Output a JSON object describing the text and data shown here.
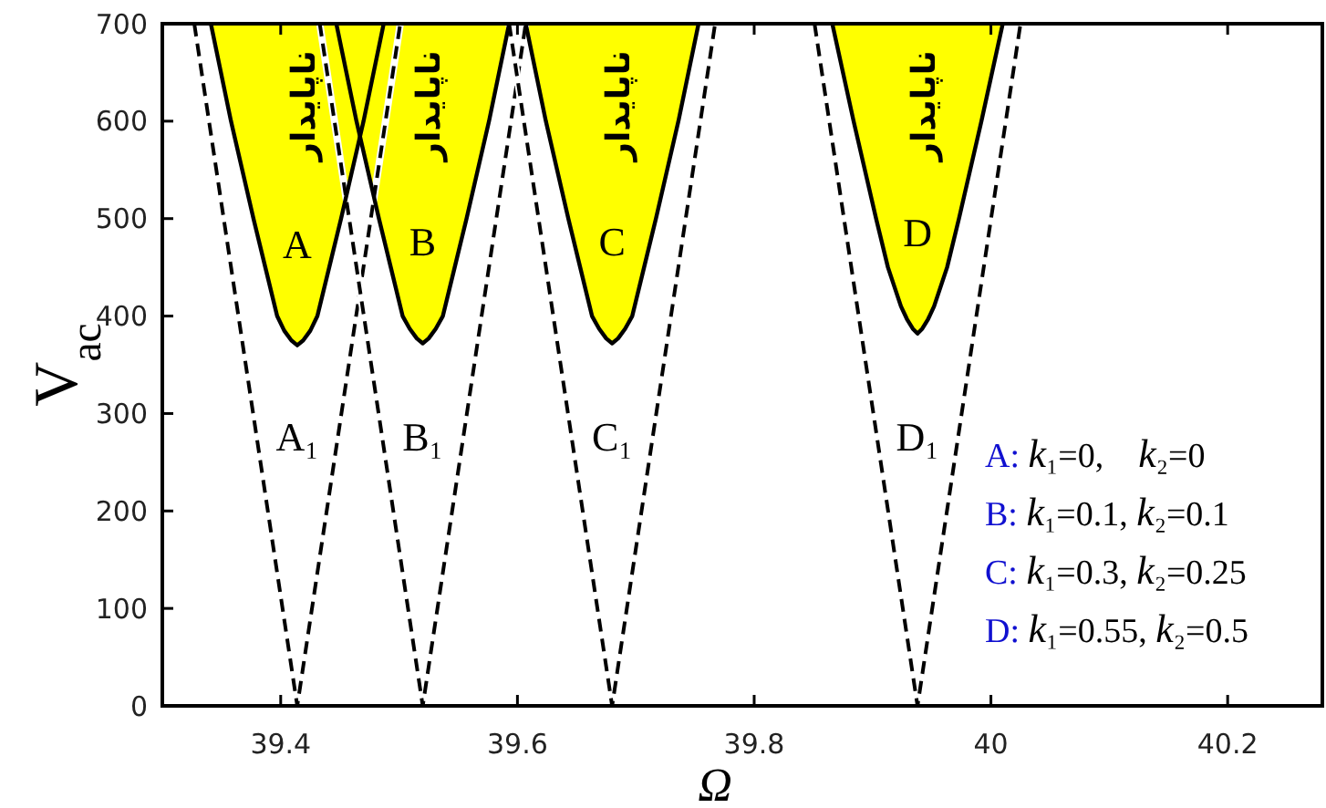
{
  "chart_data": {
    "type": "area",
    "xlabel": "Ω",
    "ylabel": "V$_{ac}$",
    "xlim": [
      39.3,
      40.28
    ],
    "ylim": [
      0,
      700
    ],
    "xticks": [
      39.4,
      39.6,
      39.8,
      40,
      40.2
    ],
    "yticks": [
      0,
      100,
      200,
      300,
      400,
      500,
      600,
      700
    ],
    "grid": false,
    "line_style": "solid",
    "series": [
      {
        "color": "#ffff00",
        "x": [
          39.341,
          39.358,
          39.377,
          39.387,
          39.397,
          39.403,
          39.409,
          39.414,
          39.419,
          39.425,
          39.431,
          39.441,
          39.451,
          39.47,
          39.487
        ],
        "values": [
          700,
          600,
          500,
          450,
          400,
          385,
          375,
          370,
          375,
          385,
          400,
          450,
          500,
          600,
          700
        ]
      },
      {
        "color": "#ffff00",
        "x": [
          39.447,
          39.464,
          39.483,
          39.493,
          39.503,
          39.509,
          39.515,
          39.52,
          39.525,
          39.531,
          39.537,
          39.547,
          39.557,
          39.576,
          39.593
        ],
        "values": [
          700,
          600,
          500,
          450,
          400,
          387,
          377,
          372,
          377,
          387,
          400,
          450,
          500,
          600,
          700
        ]
      },
      {
        "color": "#ffff00",
        "x": [
          39.607,
          39.624,
          39.643,
          39.653,
          39.663,
          39.669,
          39.675,
          39.68,
          39.685,
          39.691,
          39.697,
          39.707,
          39.717,
          39.736,
          39.753
        ],
        "values": [
          700,
          600,
          500,
          450,
          400,
          387,
          377,
          372,
          377,
          387,
          400,
          450,
          500,
          600,
          700
        ]
      },
      {
        "color": "#ffff00",
        "x": [
          39.866,
          39.884,
          39.903,
          39.913,
          39.924,
          39.929,
          39.934,
          39.938,
          39.942,
          39.947,
          39.952,
          39.963,
          39.973,
          39.992,
          40.01
        ],
        "values": [
          700,
          600,
          500,
          450,
          410,
          397,
          387,
          382,
          387,
          397,
          410,
          450,
          500,
          600,
          700
        ]
      },
      {
        "type": "line",
        "color": "#000000",
        "line_style": "dashed",
        "x": [
          39.327,
          39.414,
          39.501
        ],
        "values": [
          700,
          0,
          700
        ]
      },
      {
        "type": "line",
        "color": "#000000",
        "line_style": "dashed",
        "x": [
          39.433,
          39.52,
          39.607
        ],
        "values": [
          700,
          0,
          700
        ]
      },
      {
        "type": "line",
        "color": "#000000",
        "line_style": "dashed",
        "x": [
          39.593,
          39.68,
          39.767
        ],
        "values": [
          700,
          0,
          700
        ]
      },
      {
        "type": "line",
        "color": "#000000",
        "line_style": "dashed",
        "x": [
          39.851,
          39.938,
          40.025
        ],
        "values": [
          700,
          0,
          700
        ]
      }
    ],
    "annotations": [
      "ناپایدار",
      "ناپایدار",
      "ناپایدار",
      "ناپایدار",
      "A",
      "B",
      "C",
      "D",
      "A₁",
      "B₁",
      "C₁",
      "D₁",
      "A: k₁=0,    k₂=0",
      "B: k₁=0.1, k₂=0.1",
      "C: k₁=0.3, k₂=0.25",
      "D: k₁=0.55, k₂=0.5"
    ]
  }
}
